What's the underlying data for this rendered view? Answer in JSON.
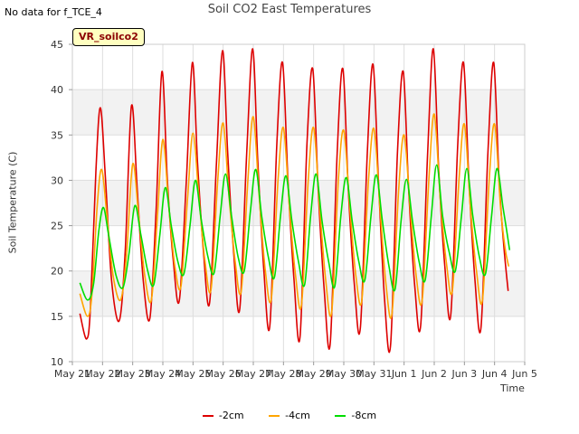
{
  "header": {
    "no_data_note": "No data for f_TCE_4",
    "title": "Soil CO2 East Temperatures",
    "tag_label": "VR_soilco2"
  },
  "chart_data": {
    "type": "line",
    "title": "Soil CO2 East Temperatures",
    "xlabel": "Time",
    "ylabel": "Soil Temperature (C)",
    "ylim": [
      10,
      45
    ],
    "yticks": [
      10,
      15,
      20,
      25,
      30,
      35,
      40,
      45
    ],
    "xlim": [
      0,
      15
    ],
    "xticks": [
      {
        "x": 0,
        "label": "May 21"
      },
      {
        "x": 1,
        "label": "May 22"
      },
      {
        "x": 2,
        "label": "May 23"
      },
      {
        "x": 3,
        "label": "May 24"
      },
      {
        "x": 4,
        "label": "May 25"
      },
      {
        "x": 5,
        "label": "May 26"
      },
      {
        "x": 6,
        "label": "May 27"
      },
      {
        "x": 7,
        "label": "May 28"
      },
      {
        "x": 8,
        "label": "May 29"
      },
      {
        "x": 9,
        "label": "May 30"
      },
      {
        "x": 10,
        "label": "May 31"
      },
      {
        "x": 11,
        "label": "Jun 1"
      },
      {
        "x": 12,
        "label": "Jun 2"
      },
      {
        "x": 13,
        "label": "Jun 3"
      },
      {
        "x": 14,
        "label": "Jun 4"
      },
      {
        "x": 15,
        "label": "Jun 5"
      }
    ],
    "grid": true,
    "legend_position": "bottom",
    "series": [
      {
        "name": "-2cm",
        "color": "#dd0000",
        "points": [
          [
            0.25,
            15.3
          ],
          [
            0.47,
            12.5
          ],
          [
            0.6,
            16.0
          ],
          [
            0.78,
            31.0
          ],
          [
            0.93,
            38.0
          ],
          [
            1.1,
            30.0
          ],
          [
            1.3,
            19.0
          ],
          [
            1.55,
            14.5
          ],
          [
            1.75,
            22.0
          ],
          [
            1.96,
            38.2
          ],
          [
            2.15,
            29.0
          ],
          [
            2.35,
            19.0
          ],
          [
            2.57,
            14.8
          ],
          [
            2.78,
            27.0
          ],
          [
            2.97,
            42.0
          ],
          [
            3.15,
            30.0
          ],
          [
            3.35,
            21.0
          ],
          [
            3.55,
            16.8
          ],
          [
            3.78,
            30.0
          ],
          [
            3.98,
            43.0
          ],
          [
            4.15,
            32.0
          ],
          [
            4.35,
            22.0
          ],
          [
            4.55,
            16.5
          ],
          [
            4.78,
            32.0
          ],
          [
            4.98,
            44.3
          ],
          [
            5.15,
            33.0
          ],
          [
            5.35,
            22.0
          ],
          [
            5.55,
            15.8
          ],
          [
            5.78,
            33.0
          ],
          [
            5.98,
            44.5
          ],
          [
            6.15,
            32.0
          ],
          [
            6.35,
            20.0
          ],
          [
            6.55,
            14.0
          ],
          [
            6.78,
            34.0
          ],
          [
            6.97,
            43.0
          ],
          [
            7.15,
            30.0
          ],
          [
            7.35,
            19.0
          ],
          [
            7.55,
            12.8
          ],
          [
            7.78,
            34.0
          ],
          [
            7.97,
            42.3
          ],
          [
            8.15,
            29.0
          ],
          [
            8.35,
            18.0
          ],
          [
            8.55,
            12.0
          ],
          [
            8.78,
            33.0
          ],
          [
            8.97,
            42.3
          ],
          [
            9.15,
            29.0
          ],
          [
            9.35,
            18.5
          ],
          [
            9.55,
            13.7
          ],
          [
            9.78,
            33.0
          ],
          [
            9.97,
            42.8
          ],
          [
            10.15,
            30.0
          ],
          [
            10.35,
            17.0
          ],
          [
            10.55,
            11.8
          ],
          [
            10.78,
            33.0
          ],
          [
            10.97,
            42.0
          ],
          [
            11.15,
            29.0
          ],
          [
            11.35,
            18.5
          ],
          [
            11.55,
            14.0
          ],
          [
            11.78,
            33.0
          ],
          [
            11.97,
            44.5
          ],
          [
            12.15,
            31.0
          ],
          [
            12.35,
            20.5
          ],
          [
            12.55,
            15.2
          ],
          [
            12.78,
            34.0
          ],
          [
            12.97,
            43.0
          ],
          [
            13.15,
            30.0
          ],
          [
            13.35,
            19.0
          ],
          [
            13.55,
            13.8
          ],
          [
            13.78,
            33.0
          ],
          [
            13.97,
            43.0
          ],
          [
            14.15,
            30.0
          ],
          [
            14.3,
            23.0
          ],
          [
            14.45,
            17.8
          ]
        ]
      },
      {
        "name": "-4cm",
        "color": "#ffa500",
        "points": [
          [
            0.25,
            17.5
          ],
          [
            0.5,
            15.0
          ],
          [
            0.65,
            17.5
          ],
          [
            0.82,
            27.0
          ],
          [
            0.97,
            31.2
          ],
          [
            1.15,
            26.0
          ],
          [
            1.35,
            19.5
          ],
          [
            1.6,
            16.8
          ],
          [
            1.8,
            22.0
          ],
          [
            2.0,
            31.8
          ],
          [
            2.2,
            26.0
          ],
          [
            2.4,
            19.5
          ],
          [
            2.62,
            16.8
          ],
          [
            2.82,
            26.0
          ],
          [
            3.0,
            34.5
          ],
          [
            3.2,
            27.0
          ],
          [
            3.4,
            20.5
          ],
          [
            3.6,
            18.3
          ],
          [
            3.82,
            28.0
          ],
          [
            4.0,
            35.2
          ],
          [
            4.2,
            28.0
          ],
          [
            4.4,
            21.0
          ],
          [
            4.6,
            18.0
          ],
          [
            4.82,
            30.0
          ],
          [
            5.0,
            36.3
          ],
          [
            5.2,
            28.0
          ],
          [
            5.4,
            21.0
          ],
          [
            5.6,
            17.8
          ],
          [
            5.82,
            30.0
          ],
          [
            6.0,
            37.0
          ],
          [
            6.2,
            28.0
          ],
          [
            6.4,
            20.0
          ],
          [
            6.6,
            17.0
          ],
          [
            6.82,
            30.0
          ],
          [
            7.0,
            35.8
          ],
          [
            7.2,
            27.0
          ],
          [
            7.4,
            19.5
          ],
          [
            7.6,
            16.3
          ],
          [
            7.82,
            30.0
          ],
          [
            8.0,
            35.8
          ],
          [
            8.2,
            27.0
          ],
          [
            8.4,
            19.0
          ],
          [
            8.6,
            15.5
          ],
          [
            8.82,
            30.0
          ],
          [
            9.0,
            35.5
          ],
          [
            9.2,
            27.0
          ],
          [
            9.4,
            19.5
          ],
          [
            9.6,
            16.8
          ],
          [
            9.82,
            30.0
          ],
          [
            10.0,
            35.7
          ],
          [
            10.2,
            27.0
          ],
          [
            10.4,
            18.5
          ],
          [
            10.6,
            15.3
          ],
          [
            10.82,
            29.0
          ],
          [
            11.0,
            35.0
          ],
          [
            11.2,
            27.0
          ],
          [
            11.4,
            19.5
          ],
          [
            11.6,
            16.8
          ],
          [
            11.82,
            30.0
          ],
          [
            12.0,
            37.3
          ],
          [
            12.2,
            28.0
          ],
          [
            12.4,
            21.0
          ],
          [
            12.6,
            17.8
          ],
          [
            12.82,
            30.0
          ],
          [
            13.0,
            36.2
          ],
          [
            13.2,
            27.0
          ],
          [
            13.4,
            20.0
          ],
          [
            13.6,
            16.8
          ],
          [
            13.82,
            30.0
          ],
          [
            14.0,
            36.2
          ],
          [
            14.2,
            27.0
          ],
          [
            14.35,
            22.5
          ],
          [
            14.47,
            20.5
          ]
        ]
      },
      {
        "name": "-8cm",
        "color": "#00dd00",
        "points": [
          [
            0.25,
            18.7
          ],
          [
            0.5,
            16.8
          ],
          [
            0.7,
            18.5
          ],
          [
            0.88,
            24.5
          ],
          [
            1.03,
            27.0
          ],
          [
            1.2,
            24.0
          ],
          [
            1.45,
            19.5
          ],
          [
            1.68,
            18.2
          ],
          [
            1.88,
            22.0
          ],
          [
            2.07,
            27.2
          ],
          [
            2.27,
            24.0
          ],
          [
            2.5,
            20.0
          ],
          [
            2.7,
            18.5
          ],
          [
            2.9,
            24.0
          ],
          [
            3.08,
            29.2
          ],
          [
            3.28,
            25.0
          ],
          [
            3.5,
            21.0
          ],
          [
            3.7,
            19.7
          ],
          [
            3.9,
            25.0
          ],
          [
            4.08,
            30.0
          ],
          [
            4.28,
            25.5
          ],
          [
            4.5,
            21.5
          ],
          [
            4.7,
            19.8
          ],
          [
            4.9,
            26.0
          ],
          [
            5.08,
            30.7
          ],
          [
            5.28,
            26.0
          ],
          [
            5.5,
            21.5
          ],
          [
            5.7,
            20.0
          ],
          [
            5.9,
            26.5
          ],
          [
            6.08,
            31.2
          ],
          [
            6.28,
            26.0
          ],
          [
            6.5,
            21.5
          ],
          [
            6.7,
            19.3
          ],
          [
            6.9,
            26.0
          ],
          [
            7.08,
            30.5
          ],
          [
            7.28,
            25.5
          ],
          [
            7.5,
            21.0
          ],
          [
            7.7,
            18.5
          ],
          [
            7.9,
            26.0
          ],
          [
            8.08,
            30.7
          ],
          [
            8.28,
            25.5
          ],
          [
            8.5,
            21.0
          ],
          [
            8.7,
            18.3
          ],
          [
            8.9,
            26.0
          ],
          [
            9.08,
            30.3
          ],
          [
            9.28,
            25.5
          ],
          [
            9.5,
            21.0
          ],
          [
            9.7,
            19.0
          ],
          [
            9.9,
            26.0
          ],
          [
            10.08,
            30.6
          ],
          [
            10.28,
            25.5
          ],
          [
            10.5,
            20.5
          ],
          [
            10.7,
            18.0
          ],
          [
            10.9,
            25.5
          ],
          [
            11.08,
            30.1
          ],
          [
            11.28,
            25.5
          ],
          [
            11.5,
            21.0
          ],
          [
            11.7,
            19.0
          ],
          [
            11.9,
            26.0
          ],
          [
            12.08,
            31.7
          ],
          [
            12.28,
            26.0
          ],
          [
            12.5,
            22.0
          ],
          [
            12.7,
            20.0
          ],
          [
            12.9,
            26.0
          ],
          [
            13.08,
            31.3
          ],
          [
            13.28,
            26.0
          ],
          [
            13.5,
            21.5
          ],
          [
            13.7,
            19.7
          ],
          [
            13.9,
            26.0
          ],
          [
            14.08,
            31.3
          ],
          [
            14.28,
            27.0
          ],
          [
            14.4,
            24.5
          ],
          [
            14.5,
            22.3
          ]
        ]
      }
    ]
  }
}
